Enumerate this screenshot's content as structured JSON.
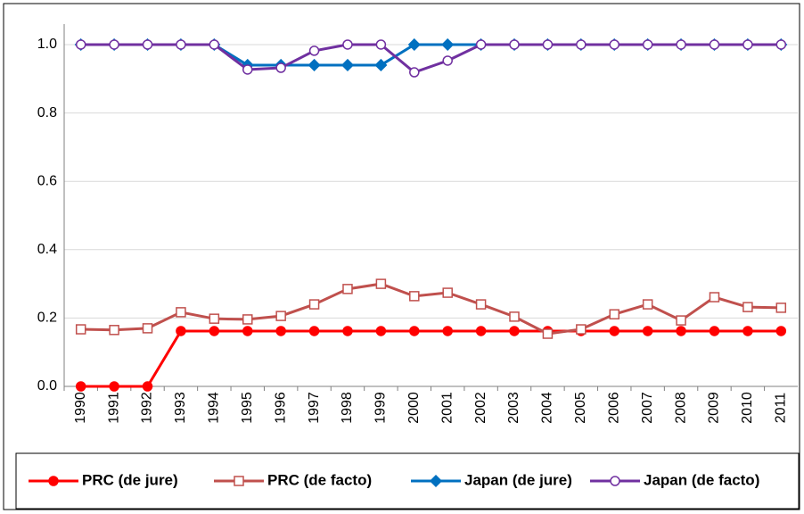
{
  "chart_data": {
    "type": "line",
    "categories": [
      "1990",
      "1991",
      "1992",
      "1993",
      "1994",
      "1995",
      "1996",
      "1997",
      "1998",
      "1999",
      "2000",
      "2001",
      "2002",
      "2003",
      "2004",
      "2005",
      "2006",
      "2007",
      "2008",
      "2009",
      "2010",
      "2011"
    ],
    "series": [
      {
        "name": "PRC (de jure)",
        "color": "#ff0000",
        "marker": "circle",
        "marker_fill": "filled",
        "values": [
          0,
          0,
          0,
          0.162,
          0.162,
          0.162,
          0.162,
          0.162,
          0.162,
          0.162,
          0.162,
          0.162,
          0.162,
          0.162,
          0.162,
          0.162,
          0.162,
          0.162,
          0.162,
          0.162,
          0.162,
          0.162
        ]
      },
      {
        "name": "PRC (de facto)",
        "color": "#c0504d",
        "marker": "square",
        "marker_fill": "hollow",
        "values": [
          0.167,
          0.165,
          0.17,
          0.217,
          0.198,
          0.196,
          0.206,
          0.24,
          0.285,
          0.3,
          0.264,
          0.274,
          0.24,
          0.204,
          0.154,
          0.167,
          0.211,
          0.24,
          0.193,
          0.261,
          0.232,
          0.23
        ]
      },
      {
        "name": "Japan (de jure)",
        "color": "#0070c0",
        "marker": "diamond",
        "marker_fill": "filled",
        "values": [
          1,
          1,
          1,
          1,
          1,
          0.94,
          0.94,
          0.94,
          0.94,
          0.94,
          1,
          1,
          1,
          1,
          1,
          1,
          1,
          1,
          1,
          1,
          1,
          1
        ]
      },
      {
        "name": "Japan (de facto)",
        "color": "#7030a0",
        "marker": "circle",
        "marker_fill": "hollow",
        "values": [
          1,
          1,
          1,
          1,
          1,
          0.927,
          0.932,
          0.982,
          1,
          1,
          0.919,
          0.953,
          1,
          1,
          1,
          1,
          1,
          1,
          1,
          1,
          1,
          1
        ]
      }
    ],
    "ylim": [
      0,
      1.06
    ],
    "yticks": [
      {
        "value": 0,
        "label": "0.0"
      },
      {
        "value": 0.2,
        "label": "0.2"
      },
      {
        "value": 0.4,
        "label": "0.4"
      },
      {
        "value": 0.6,
        "label": "0.6"
      },
      {
        "value": 0.8,
        "label": "0.8"
      },
      {
        "value": 1,
        "label": "1.0"
      }
    ],
    "grid": true,
    "legend": "bottom"
  }
}
